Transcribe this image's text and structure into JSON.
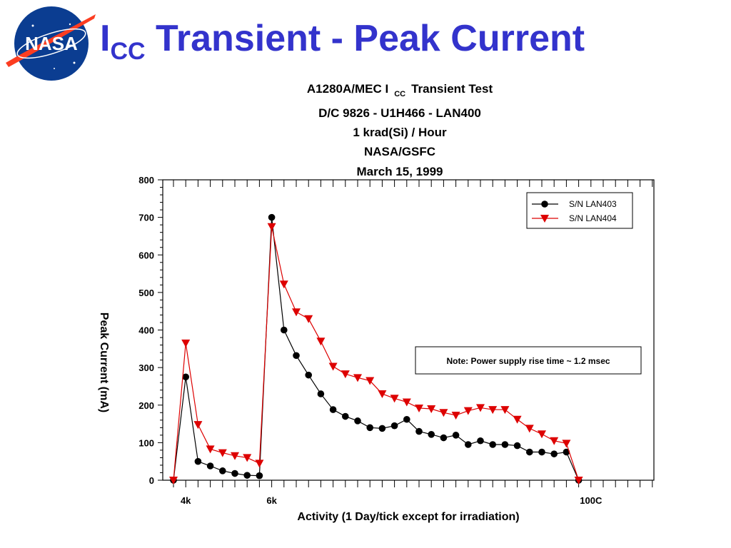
{
  "slide": {
    "title_main": "I",
    "title_sub": "CC",
    "title_rest": " Transient - Peak Current",
    "logo_text": "NASA"
  },
  "colors": {
    "title": "#3333cc",
    "logo_blue": "#0b3d91",
    "logo_red": "#fc3d21",
    "series_black": "#000000",
    "series_red": "#dd0000"
  },
  "chart_data": {
    "type": "line",
    "title_lines": [
      {
        "parts": [
          {
            "text": "A1280A/MEC I"
          },
          {
            "text": "CC",
            "sub": true
          },
          {
            "text": "Transient Test"
          }
        ]
      },
      {
        "parts": [
          {
            "text": "D/C 9826 - U1H466 - LAN400"
          }
        ]
      },
      {
        "parts": [
          {
            "text": "1 krad(Si) / Hour"
          }
        ]
      },
      {
        "parts": [
          {
            "text": "NASA/GSFC"
          }
        ]
      },
      {
        "parts": [
          {
            "text": "March 15, 1999"
          }
        ]
      }
    ],
    "xlabel": "Activity (1 Day/tick except for irradiation)",
    "ylabel": "Peak Current (mA)",
    "ylim": [
      0,
      800
    ],
    "yticks": [
      0,
      100,
      200,
      300,
      400,
      500,
      600,
      700,
      800
    ],
    "xlim": [
      0,
      40
    ],
    "x_tick_count": 41,
    "x_tick_labels": [
      {
        "x": 1,
        "label": "4k"
      },
      {
        "x": 8,
        "label": "6k"
      },
      {
        "x": 34,
        "label": "100C"
      }
    ],
    "legend_position": "top-right",
    "annotation": "Note: Power supply rise time ~ 1.2 msec",
    "series": [
      {
        "name": "S/N LAN403",
        "marker": "circle",
        "color": "#000000",
        "values": [
          0,
          275,
          50,
          38,
          25,
          18,
          13,
          12,
          700,
          400,
          332,
          280,
          230,
          188,
          170,
          158,
          140,
          138,
          145,
          162,
          130,
          122,
          113,
          120,
          95,
          105,
          95,
          95,
          92,
          75,
          75,
          70,
          75,
          0
        ]
      },
      {
        "name": "S/N LAN404",
        "marker": "triangle-down",
        "color": "#dd0000",
        "values": [
          0,
          365,
          148,
          83,
          73,
          65,
          60,
          45,
          675,
          522,
          448,
          430,
          370,
          303,
          283,
          273,
          265,
          230,
          218,
          208,
          192,
          190,
          180,
          173,
          185,
          193,
          188,
          188,
          162,
          138,
          123,
          105,
          98,
          0
        ]
      }
    ]
  }
}
